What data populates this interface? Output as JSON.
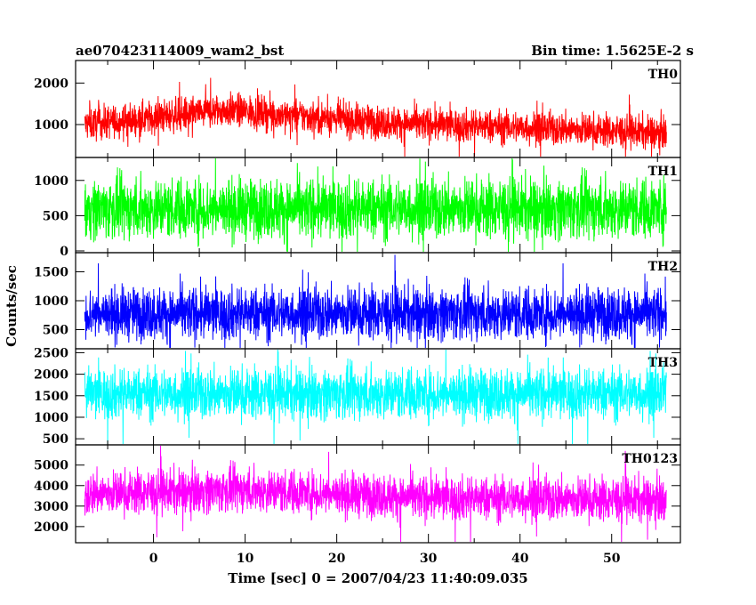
{
  "chart_data": {
    "type": "line",
    "title": "ae070423114009_wam2_bst",
    "subtitle": "Bin time: 1.5625E-2 s",
    "xlabel": "Time [sec] 0 = 2007/04/23 11:40:09.035",
    "ylabel": "Counts/sec",
    "xlim": [
      -8.5,
      57.5
    ],
    "x_ticks": [
      0,
      10,
      20,
      30,
      40,
      50
    ],
    "x_range_data": [
      -7.5,
      56
    ],
    "grid": false,
    "panels": [
      {
        "name": "TH0",
        "color": "#ff0000",
        "ylim": [
          250,
          2500
        ],
        "y_ticks": [
          1000,
          2000
        ],
        "base_trend": [
          [
            -7.5,
            1000
          ],
          [
            8,
            1350
          ],
          [
            25,
            1050
          ],
          [
            56,
            800
          ]
        ],
        "noise_amplitude": 280
      },
      {
        "name": "TH1",
        "color": "#00ff00",
        "ylim": [
          0,
          1300
        ],
        "y_ticks": [
          0,
          500,
          1000
        ],
        "base_trend": [
          [
            -7.5,
            600
          ],
          [
            56,
            600
          ]
        ],
        "noise_amplitude": 300
      },
      {
        "name": "TH2",
        "color": "#0000ff",
        "ylim": [
          200,
          1800
        ],
        "y_ticks": [
          500,
          1000,
          1500
        ],
        "base_trend": [
          [
            -7.5,
            780
          ],
          [
            56,
            780
          ]
        ],
        "noise_amplitude": 320
      },
      {
        "name": "TH3",
        "color": "#00ffff",
        "ylim": [
          400,
          2550
        ],
        "y_ticks": [
          500,
          1000,
          1500,
          2000,
          2500
        ],
        "base_trend": [
          [
            -7.5,
            1550
          ],
          [
            56,
            1550
          ]
        ],
        "noise_amplitude": 420
      },
      {
        "name": "TH0123",
        "color": "#ff00ff",
        "ylim": [
          1300,
          5900
        ],
        "y_ticks": [
          2000,
          3000,
          4000,
          5000
        ],
        "base_trend": [
          [
            -7.5,
            3600
          ],
          [
            10,
            3800
          ],
          [
            30,
            3400
          ],
          [
            56,
            3300
          ]
        ],
        "noise_amplitude": 750
      }
    ]
  }
}
